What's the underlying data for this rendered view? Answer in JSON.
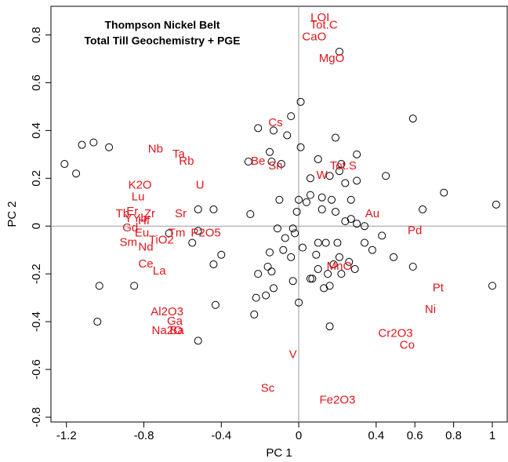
{
  "chart_data": {
    "type": "scatter",
    "title": [
      "Thompson Nickel Belt",
      "Total Till Geochemistry + PGE"
    ],
    "x_label": "PC 1",
    "y_label": "PC 2",
    "xlim": [
      -1.28,
      1.077
    ],
    "ylim": [
      -0.82,
      0.92
    ],
    "xticks": [
      -1.2,
      -0.8,
      -0.4,
      0.0,
      0.4,
      0.6,
      0.8,
      1.0
    ],
    "yticks": [
      -0.8,
      -0.6,
      -0.4,
      -0.2,
      0.0,
      0.2,
      0.4,
      0.6,
      0.8
    ],
    "reference_lines": true,
    "point_color": "#000000",
    "annotation_color": "#e3141b",
    "x": [
      -1.21,
      -1.15,
      -1.12,
      -1.06,
      -0.98,
      -1.03,
      -1.04,
      -0.85,
      -0.67,
      -0.55,
      -0.52,
      -0.52,
      -0.44,
      -0.44,
      -0.43,
      -0.4,
      -0.52,
      -0.25,
      -0.23,
      -0.22,
      -0.21,
      -0.17,
      -0.16,
      -0.14,
      -0.15,
      -0.13,
      -0.13,
      -0.15,
      -0.14,
      -0.26,
      -0.21,
      -0.09,
      -0.1,
      -0.06,
      -0.04,
      -0.04,
      -0.03,
      -0.02,
      -0.01,
      0.0,
      0.01,
      0.01,
      -0.03,
      0.0,
      0.02,
      0.04,
      0.06,
      0.09,
      0.1,
      0.1,
      0.12,
      0.12,
      0.14,
      0.15,
      0.16,
      0.16,
      0.1,
      0.17,
      0.19,
      0.2,
      0.21,
      0.22,
      0.24,
      0.27,
      0.27,
      0.21,
      0.29,
      0.3,
      0.3,
      0.3,
      0.34,
      0.38,
      0.43,
      0.45,
      0.49,
      0.59,
      0.59,
      0.75,
      0.64,
      1.0,
      1.02,
      0.21,
      0.16,
      -0.11,
      -0.07,
      -0.08,
      0.06,
      0.13,
      0.26,
      0.24,
      0.34,
      0.22,
      0.06,
      0.18,
      0.07,
      0.19
    ],
    "y": [
      0.26,
      0.22,
      0.34,
      0.35,
      0.33,
      -0.25,
      -0.4,
      -0.25,
      -0.03,
      -0.07,
      -0.02,
      0.07,
      0.07,
      -0.16,
      -0.33,
      -0.12,
      -0.48,
      0.05,
      -0.37,
      -0.3,
      -0.2,
      -0.29,
      -0.17,
      -0.19,
      -0.11,
      -0.26,
      0.4,
      0.31,
      0.27,
      0.27,
      0.41,
      0.26,
      0.11,
      0.38,
      0.46,
      -0.13,
      -0.01,
      -0.03,
      0.06,
      0.11,
      0.52,
      0.33,
      -0.23,
      -0.32,
      -0.09,
      0.1,
      0.13,
      -0.12,
      -0.07,
      -0.18,
      0.07,
      0.12,
      -0.07,
      -0.2,
      -0.25,
      0.21,
      0.28,
      0.11,
      0.06,
      -0.07,
      -0.13,
      -0.2,
      0.18,
      0.11,
      0.03,
      0.23,
      -0.18,
      0.19,
      0.3,
      0.01,
      0.0,
      -0.1,
      -0.04,
      0.21,
      -0.13,
      0.45,
      -0.17,
      0.14,
      0.07,
      -0.25,
      0.09,
      0.73,
      -0.42,
      -0.01,
      -0.05,
      -0.1,
      -0.22,
      -0.26,
      -0.15,
      0.02,
      -0.07,
      0.26,
      0.2,
      -0.16,
      -0.22,
      0.37
    ],
    "annotations": [
      {
        "text": "LOI",
        "x": 0.11,
        "y": 0.87
      },
      {
        "text": "Tot.C",
        "x": 0.13,
        "y": 0.84
      },
      {
        "text": "CaO",
        "x": 0.08,
        "y": 0.79
      },
      {
        "text": "MgO",
        "x": 0.17,
        "y": 0.7
      },
      {
        "text": "Cs",
        "x": -0.12,
        "y": 0.43
      },
      {
        "text": "Nb",
        "x": -0.74,
        "y": 0.32
      },
      {
        "text": "Ta",
        "x": -0.62,
        "y": 0.3
      },
      {
        "text": "Rb",
        "x": -0.58,
        "y": 0.27
      },
      {
        "text": "Be",
        "x": -0.21,
        "y": 0.27
      },
      {
        "text": "Sn",
        "x": -0.12,
        "y": 0.25
      },
      {
        "text": "Tot.S",
        "x": 0.23,
        "y": 0.25
      },
      {
        "text": "W",
        "x": 0.12,
        "y": 0.21
      },
      {
        "text": "K2O",
        "x": -0.82,
        "y": 0.17
      },
      {
        "text": "U",
        "x": -0.51,
        "y": 0.17
      },
      {
        "text": "Lu",
        "x": -0.83,
        "y": 0.12
      },
      {
        "text": "Sr",
        "x": -0.61,
        "y": 0.05
      },
      {
        "text": "Au",
        "x": 0.38,
        "y": 0.05
      },
      {
        "text": "Pd",
        "x": 0.6,
        "y": -0.02
      },
      {
        "text": "Tb",
        "x": -0.91,
        "y": 0.05
      },
      {
        "text": "Er",
        "x": -0.86,
        "y": 0.06
      },
      {
        "text": "Y",
        "x": -0.88,
        "y": 0.03
      },
      {
        "text": "Yb",
        "x": -0.82,
        "y": 0.03
      },
      {
        "text": "Hf",
        "x": -0.8,
        "y": 0.02
      },
      {
        "text": "Zr",
        "x": -0.77,
        "y": 0.05
      },
      {
        "text": "Gd",
        "x": -0.87,
        "y": -0.01
      },
      {
        "text": "Eu",
        "x": -0.81,
        "y": -0.03
      },
      {
        "text": "Tm",
        "x": -0.63,
        "y": -0.03
      },
      {
        "text": "P2O5",
        "x": -0.48,
        "y": -0.03
      },
      {
        "text": "TiO2",
        "x": -0.71,
        "y": -0.06
      },
      {
        "text": "Sm",
        "x": -0.88,
        "y": -0.07
      },
      {
        "text": "Nd",
        "x": -0.79,
        "y": -0.09
      },
      {
        "text": "Ce",
        "x": -0.79,
        "y": -0.16
      },
      {
        "text": "La",
        "x": -0.72,
        "y": -0.19
      },
      {
        "text": "MnO",
        "x": 0.21,
        "y": -0.17
      },
      {
        "text": "Pt",
        "x": 0.72,
        "y": -0.26
      },
      {
        "text": "Ni",
        "x": 0.68,
        "y": -0.35
      },
      {
        "text": "Al2O3",
        "x": -0.68,
        "y": -0.36
      },
      {
        "text": "Ga",
        "x": -0.64,
        "y": -0.4
      },
      {
        "text": "Na2O",
        "x": -0.68,
        "y": -0.44
      },
      {
        "text": "Ba",
        "x": -0.63,
        "y": -0.44
      },
      {
        "text": "Cr2O3",
        "x": 0.5,
        "y": -0.45
      },
      {
        "text": "Co",
        "x": 0.56,
        "y": -0.5
      },
      {
        "text": "V",
        "x": -0.03,
        "y": -0.54
      },
      {
        "text": "Sc",
        "x": -0.16,
        "y": -0.68
      },
      {
        "text": "Fe2O3",
        "x": 0.2,
        "y": -0.73
      }
    ]
  }
}
